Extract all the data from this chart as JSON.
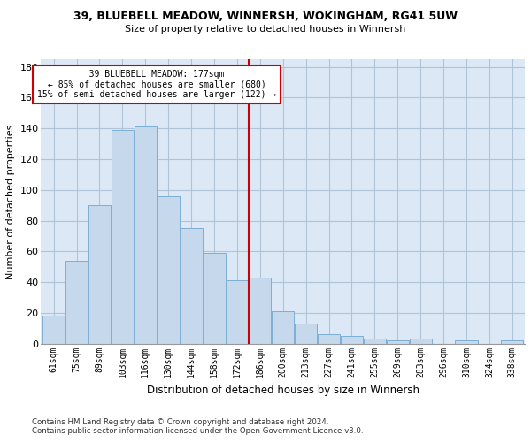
{
  "title1": "39, BLUEBELL MEADOW, WINNERSH, WOKINGHAM, RG41 5UW",
  "title2": "Size of property relative to detached houses in Winnersh",
  "xlabel": "Distribution of detached houses by size in Winnersh",
  "ylabel": "Number of detached properties",
  "footer1": "Contains HM Land Registry data © Crown copyright and database right 2024.",
  "footer2": "Contains public sector information licensed under the Open Government Licence v3.0.",
  "annotation_line1": "   39 BLUEBELL MEADOW: 177sqm   ",
  "annotation_line2": "← 85% of detached houses are smaller (680)",
  "annotation_line3": "15% of semi-detached houses are larger (122) →",
  "bar_labels": [
    "61sqm",
    "75sqm",
    "89sqm",
    "103sqm",
    "116sqm",
    "130sqm",
    "144sqm",
    "158sqm",
    "172sqm",
    "186sqm",
    "200sqm",
    "213sqm",
    "227sqm",
    "241sqm",
    "255sqm",
    "269sqm",
    "283sqm",
    "296sqm",
    "310sqm",
    "324sqm",
    "338sqm"
  ],
  "bar_heights": [
    18,
    54,
    90,
    139,
    141,
    96,
    75,
    59,
    41,
    43,
    21,
    13,
    6,
    5,
    3,
    2,
    3,
    0,
    2,
    0,
    2
  ],
  "bar_color": "#c6d9ec",
  "bar_edge_color": "#7bafd4",
  "vline_color": "#cc0000",
  "annotation_box_edge": "#cc0000",
  "plot_bg_color": "#dce8f5",
  "background_color": "#ffffff",
  "grid_color": "#b0c4d8",
  "ylim": [
    0,
    185
  ],
  "yticks": [
    0,
    20,
    40,
    60,
    80,
    100,
    120,
    140,
    160,
    180
  ],
  "vline_x_index": 8.5
}
